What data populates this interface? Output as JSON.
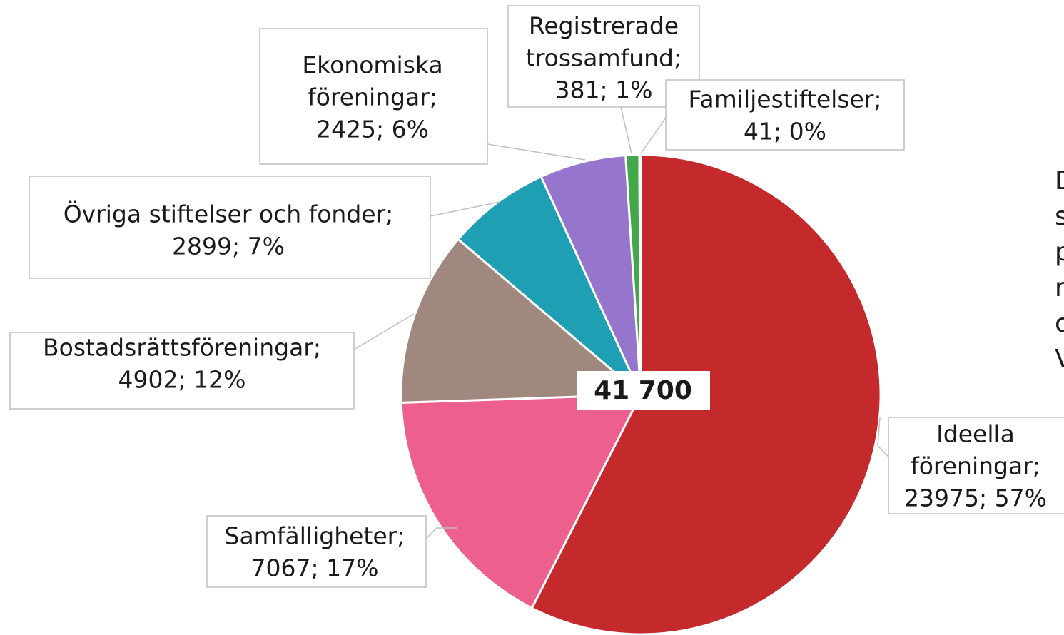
{
  "chart_data": {
    "type": "pie",
    "labels": [
      [
        "Ideella",
        "föreningar;",
        "23975; 57%"
      ],
      [
        "Samfälligheter;",
        "7067; 17%"
      ],
      [
        "Bostadsrättsföreningar;",
        "4902; 12%"
      ],
      [
        "Övriga stiftelser och fonder;",
        "2899; 7%"
      ],
      [
        "Ekonomiska",
        "föreningar;",
        "2425; 6%"
      ],
      [
        "Registrerade",
        "trossamfund;",
        "381; 1%"
      ],
      [
        "Familjestiftelser;",
        "41; 0%"
      ]
    ],
    "values": [
      23975,
      7067,
      4902,
      2899,
      2425,
      381,
      41
    ],
    "colors": [
      "#c4292c",
      "#ed5f8c",
      "#a0887e",
      "#1e9fb3",
      "#9676cd",
      "#43a84a",
      "#4472c4"
    ],
    "total_label": "41 700",
    "side_text": [
      "D",
      "s",
      "p",
      "r",
      "c",
      "V"
    ]
  }
}
